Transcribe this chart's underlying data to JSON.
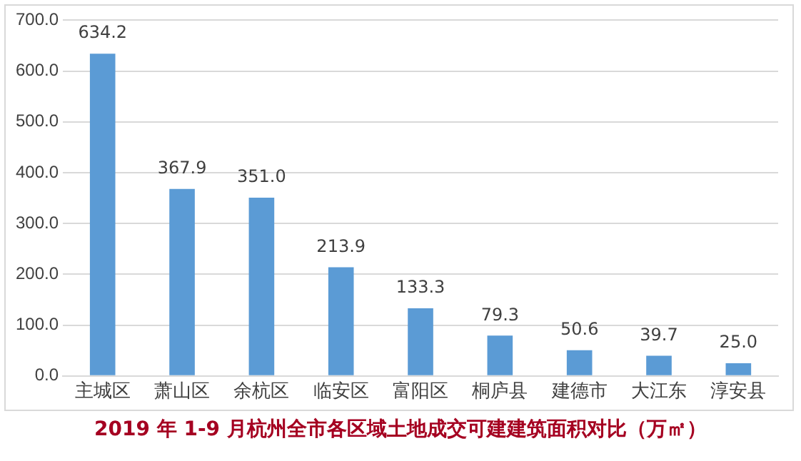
{
  "chart_data": {
    "type": "bar",
    "title": "2019 年 1-9 月杭州全市各区域土地成交可建建筑面积对比（万㎡）",
    "categories": [
      "主城区",
      "萧山区",
      "余杭区",
      "临安区",
      "富阳区",
      "桐庐县",
      "建德市",
      "大江东",
      "淳安县"
    ],
    "values": [
      634.2,
      367.9,
      351.0,
      213.9,
      133.3,
      79.3,
      50.6,
      39.7,
      25.0
    ],
    "value_labels": [
      "634.2",
      "367.9",
      "351.0",
      "213.9",
      "133.3",
      "79.3",
      "50.6",
      "39.7",
      "25.0"
    ],
    "color": "#5b9bd5",
    "ylim": [
      0,
      700
    ],
    "yticks": [
      {
        "value": 0,
        "label": "0.0"
      },
      {
        "value": 100,
        "label": "100.0"
      },
      {
        "value": 200,
        "label": "200.0"
      },
      {
        "value": 300,
        "label": "300.0"
      },
      {
        "value": 400,
        "label": "400.0"
      },
      {
        "value": 500,
        "label": "500.0"
      },
      {
        "value": 600,
        "label": "600.0"
      },
      {
        "value": 700,
        "label": "700.0"
      }
    ],
    "grid": "y"
  }
}
